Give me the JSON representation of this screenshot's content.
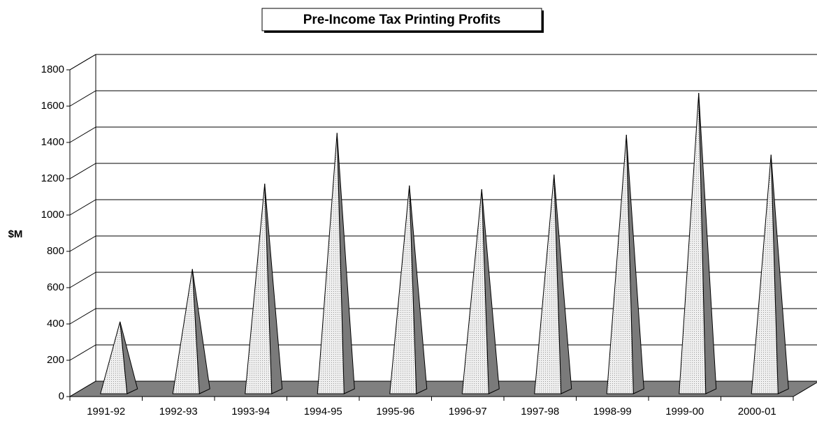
{
  "chart_data": {
    "type": "pyramid",
    "title": "Pre-Income Tax Printing Profits",
    "y_label": "$M",
    "categories": [
      "1991-92",
      "1992-93",
      "1993-94",
      "1994-95",
      "1995-96",
      "1996-97",
      "1997-98",
      "1998-99",
      "1999-00",
      "2000-01"
    ],
    "values": [
      370,
      660,
      1130,
      1410,
      1120,
      1100,
      1180,
      1400,
      1630,
      1290
    ],
    "color": "#e4e4e4",
    "side_color": "#7a7a7a",
    "floor_color": "#808080",
    "ylim": [
      0,
      1800
    ],
    "yticks": [
      0,
      200,
      400,
      600,
      800,
      1000,
      1200,
      1400,
      1600,
      1800
    ],
    "grid": true
  }
}
